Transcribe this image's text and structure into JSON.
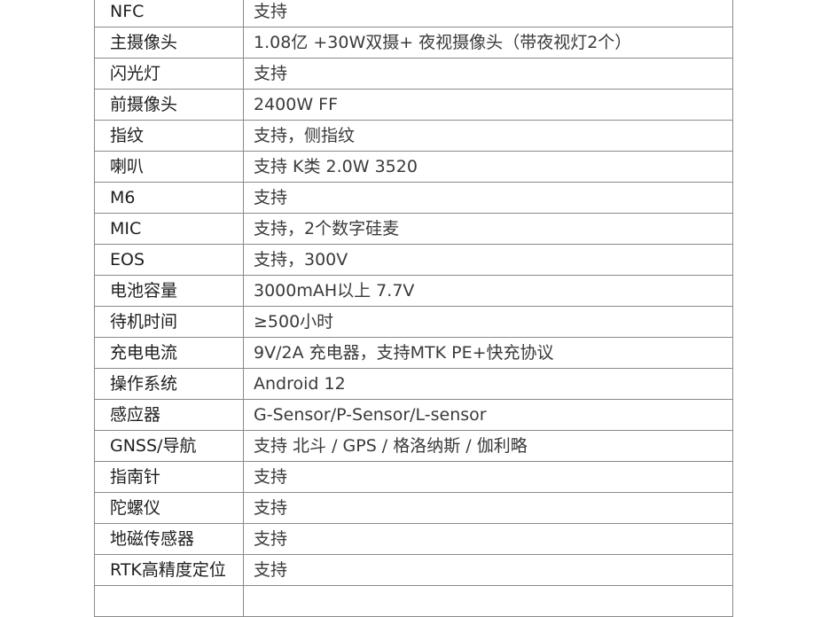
{
  "specs": [
    {
      "label": "NFC",
      "value": "支持"
    },
    {
      "label": "主摄像头",
      "value": "1.08亿 +30W双摄+ 夜视摄像头（带夜视灯2个）"
    },
    {
      "label": "闪光灯",
      "value": "支持"
    },
    {
      "label": "前摄像头",
      "value": "2400W FF"
    },
    {
      "label": "指纹",
      "value": "支持，侧指纹"
    },
    {
      "label": "喇叭",
      "value": "支持 K类  2.0W 3520"
    },
    {
      "label": "M6",
      "value": "支持"
    },
    {
      "label": "MIC",
      "value": "支持，2个数字硅麦"
    },
    {
      "label": "EOS",
      "value": "支持，300V"
    },
    {
      "label": "电池容量",
      "value": "3000mAH以上 7.7V"
    },
    {
      "label": "待机时间",
      "value": "≥500小时"
    },
    {
      "label": "充电电流",
      "value": "9V/2A 充电器，支持MTK PE+快充协议"
    },
    {
      "label": "操作系统",
      "value": "Android 12"
    },
    {
      "label": "感应器",
      "value": "G-Sensor/P-Sensor/L-sensor"
    },
    {
      "label": "GNSS/导航",
      "value": "支持 北斗 / GPS / 格洛纳斯 / 伽利略"
    },
    {
      "label": "指南针",
      "value": "支持"
    },
    {
      "label": "陀螺仪",
      "value": "支持"
    },
    {
      "label": "地磁传感器",
      "value": "支持"
    },
    {
      "label": "RTK高精度定位",
      "value": "支持"
    }
  ]
}
